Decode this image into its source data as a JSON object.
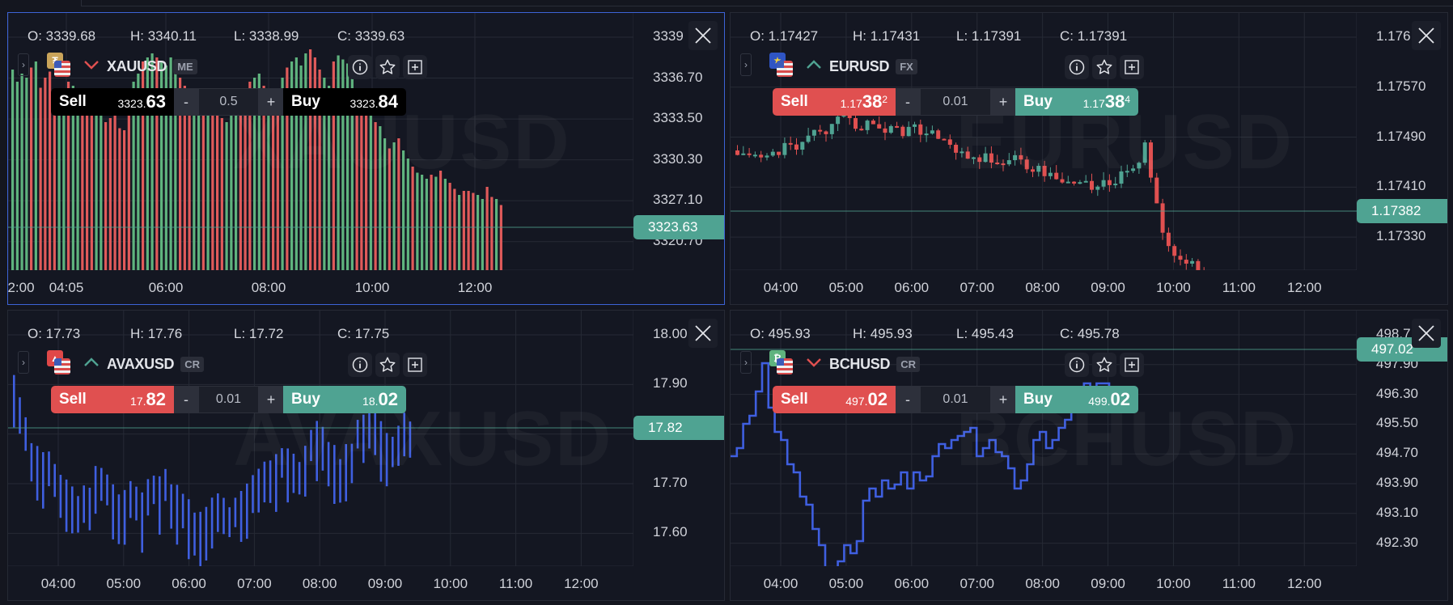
{
  "colors": {
    "background": "#141722",
    "grid": "#262a35",
    "active_border": "#3d63d6",
    "up": "#4fa392",
    "down": "#e05050",
    "bar_up": "#5fb37e",
    "bar_down": "#e05a5a",
    "line": "#3f5fe0",
    "price_tag": "#4fa392"
  },
  "panels": [
    {
      "symbol": "XAUUSD",
      "category": "ME",
      "badge_icon": "tether-gold-icon",
      "badge_color": "#c9a45a",
      "direction": "down",
      "watermark": "XAUUSD",
      "chart_style": "bars-colored",
      "ohlc": {
        "o": "O: 3339.68",
        "h": "H: 3340.11",
        "l": "L: 3338.99",
        "c": "C: 3339.63"
      },
      "sell": {
        "label": "Sell",
        "prefix": "3323.",
        "big": "63",
        "sup": ""
      },
      "buy": {
        "label": "Buy",
        "prefix": "3323.",
        "big": "84",
        "sup": ""
      },
      "quantity": "0.5",
      "minus": "-",
      "plus": "+",
      "current_price": "3323.63",
      "y_ticks": [
        "3339",
        "3336.70",
        "3333.50",
        "3330.30",
        "3327.10",
        "3320.70"
      ],
      "x_ticks": [
        "2:00",
        "04:05",
        "06:00",
        "08:00",
        "10:00",
        "12:00"
      ]
    },
    {
      "symbol": "EURUSD",
      "category": "FX",
      "badge_icon": "eu-flag-icon",
      "badge_color": "#2f55c4",
      "direction": "up",
      "watermark": "EURUSD",
      "chart_style": "candles",
      "ohlc": {
        "o": "O: 1.17427",
        "h": "H: 1.17431",
        "l": "L: 1.17391",
        "c": "C: 1.17391"
      },
      "sell": {
        "label": "Sell",
        "prefix": "1.17",
        "big": "38",
        "sup": "2"
      },
      "buy": {
        "label": "Buy",
        "prefix": "1.17",
        "big": "38",
        "sup": "4"
      },
      "quantity": "0.01",
      "minus": "-",
      "plus": "+",
      "current_price": "1.17382",
      "y_ticks": [
        "1.176",
        "1.17570",
        "1.17490",
        "1.17410",
        "1.17330"
      ],
      "x_ticks": [
        "04:00",
        "05:00",
        "06:00",
        "07:00",
        "08:00",
        "09:00",
        "10:00",
        "11:00",
        "12:00"
      ]
    },
    {
      "symbol": "AVAXUSD",
      "category": "CR",
      "badge_icon": "avalanche-icon",
      "badge_color": "#e04848",
      "direction": "up",
      "watermark": "AVAXUSD",
      "chart_style": "hlc-bars",
      "ohlc": {
        "o": "O: 17.73",
        "h": "H: 17.76",
        "l": "L: 17.72",
        "c": "C: 17.75"
      },
      "sell": {
        "label": "Sell",
        "prefix": "17.",
        "big": "82",
        "sup": ""
      },
      "buy": {
        "label": "Buy",
        "prefix": "18.",
        "big": "02",
        "sup": ""
      },
      "quantity": "0.01",
      "minus": "-",
      "plus": "+",
      "current_price": "17.82",
      "y_ticks": [
        "18.00",
        "17.90",
        "17.80",
        "17.70",
        "17.60"
      ],
      "x_ticks": [
        "04:00",
        "05:00",
        "06:00",
        "07:00",
        "08:00",
        "09:00",
        "10:00",
        "11:00",
        "12:00"
      ]
    },
    {
      "symbol": "BCHUSD",
      "category": "CR",
      "badge_icon": "bitcoin-cash-icon",
      "badge_color": "#5fb37e",
      "direction": "down",
      "watermark": "BCHUSD",
      "chart_style": "step-line",
      "ohlc": {
        "o": "O: 495.93",
        "h": "H: 495.93",
        "l": "L: 495.43",
        "c": "C: 495.78"
      },
      "sell": {
        "label": "Sell",
        "prefix": "497.",
        "big": "02",
        "sup": ""
      },
      "buy": {
        "label": "Buy",
        "prefix": "499.",
        "big": "02",
        "sup": ""
      },
      "quantity": "0.01",
      "minus": "-",
      "plus": "+",
      "current_price": "497.02",
      "y_ticks": [
        "498.7",
        "497.90",
        "496.30",
        "495.50",
        "494.70",
        "493.90",
        "493.10",
        "492.30"
      ],
      "x_ticks": [
        "04:00",
        "05:00",
        "06:00",
        "07:00",
        "08:00",
        "09:00",
        "10:00",
        "11:00",
        "12:00"
      ]
    }
  ],
  "icons": {
    "info": "info-icon",
    "favorite": "star-icon",
    "add": "plus-square-icon",
    "close": "close-icon",
    "collapse": "chevron-right-icon"
  }
}
